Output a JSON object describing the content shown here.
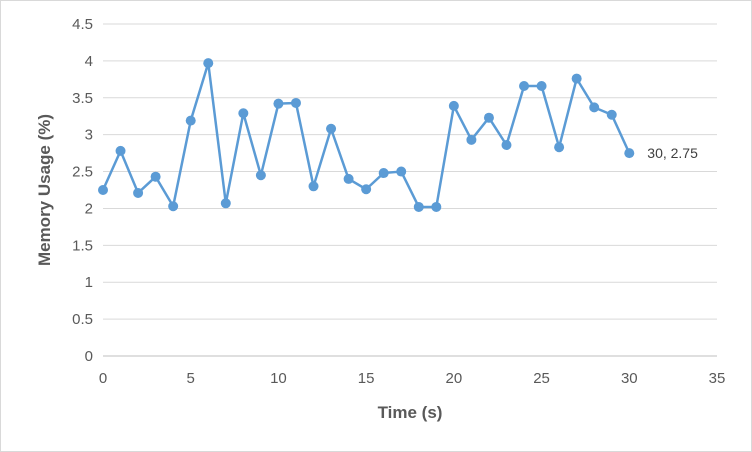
{
  "chart_data": {
    "type": "scatter",
    "mode": "lines+markers",
    "xlabel": "Time (s)",
    "ylabel": "Memory Usage (%)",
    "xlim": [
      0,
      35
    ],
    "ylim": [
      0,
      4.5
    ],
    "xticks": [
      0,
      5,
      10,
      15,
      20,
      25,
      30,
      35
    ],
    "yticks": [
      0,
      0.5,
      1,
      1.5,
      2,
      2.5,
      3,
      3.5,
      4,
      4.5
    ],
    "grid": "horizontal",
    "legend": "none",
    "series_color": "#5b9bd5",
    "series": [
      {
        "x": [
          0,
          1,
          2,
          3,
          4,
          5,
          6,
          7,
          8,
          9,
          10,
          11,
          12,
          13,
          14,
          15,
          16,
          17,
          18,
          19,
          20,
          21,
          22,
          23,
          24,
          25,
          26,
          27,
          28,
          29,
          30
        ],
        "y": [
          2.25,
          2.78,
          2.21,
          2.43,
          2.03,
          3.19,
          3.97,
          2.07,
          3.29,
          2.45,
          3.42,
          3.43,
          2.3,
          3.08,
          2.4,
          2.26,
          2.48,
          2.5,
          2.02,
          2.02,
          3.39,
          2.93,
          3.23,
          2.86,
          3.66,
          3.66,
          2.83,
          3.76,
          3.37,
          3.27,
          2.75
        ]
      }
    ],
    "annotations": [
      {
        "x": 30,
        "y": 2.75,
        "text": "30, 2.75"
      }
    ]
  }
}
